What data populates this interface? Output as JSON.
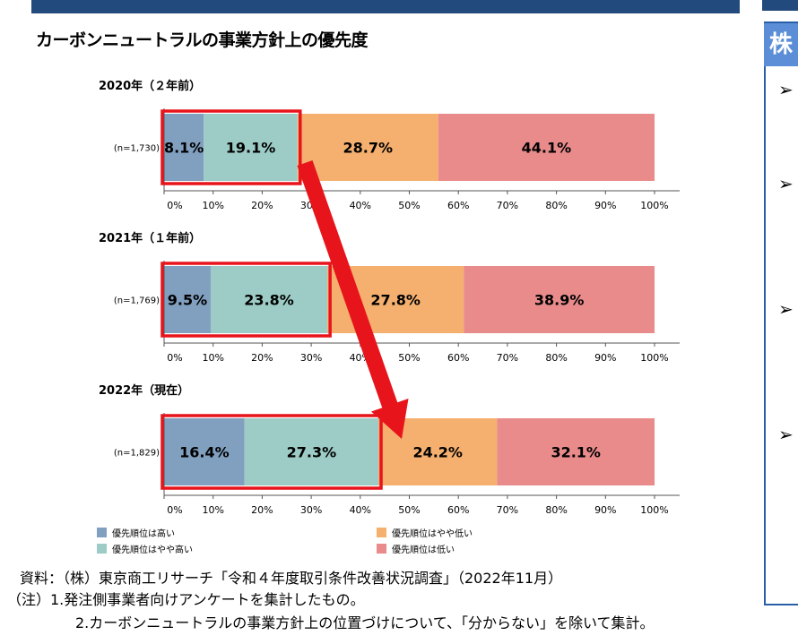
{
  "right_panel": {
    "header": "株",
    "bullets": [
      "➢",
      "➢",
      "➢",
      "➢"
    ]
  },
  "chart_data": {
    "type": "bar",
    "orientation": "horizontal-stacked-100",
    "title": "カーボンニュートラルの事業方針上の優先度",
    "xlim": [
      0,
      100
    ],
    "ticks": [
      "0%",
      "10%",
      "20%",
      "30%",
      "40%",
      "50%",
      "60%",
      "70%",
      "80%",
      "90%",
      "100%"
    ],
    "legend_position": "bottom",
    "series_names": [
      "優先順位は高い",
      "優先順位はやや高い",
      "優先順位はやや低い",
      "優先順位は低い"
    ],
    "colors": [
      "#819fbf",
      "#9dccc6",
      "#f5b06f",
      "#e98b8b"
    ],
    "groups": [
      {
        "label": "2020年（２年前）",
        "n": "(n=1,730)",
        "values": [
          8.1,
          19.1,
          28.7,
          44.1
        ],
        "labels": [
          "8.1%",
          "19.1%",
          "28.7%",
          "44.1%"
        ]
      },
      {
        "label": "2021年（１年前）",
        "n": "(n=1,769)",
        "values": [
          9.5,
          23.8,
          27.8,
          38.9
        ],
        "labels": [
          "9.5%",
          "23.8%",
          "27.8%",
          "38.9%"
        ]
      },
      {
        "label": "2022年（現在）",
        "n": "(n=1,829)",
        "values": [
          16.4,
          27.3,
          24.2,
          32.1
        ],
        "labels": [
          "16.4%",
          "27.3%",
          "24.2%",
          "32.1%"
        ]
      }
    ],
    "highlight": {
      "color": "#e8141b",
      "segments": "first two",
      "arrow": "from 2020 highlight to 2022 highlight"
    }
  },
  "footer": {
    "source": "資料：（株）東京商工リサーチ「令和４年度取引条件改善状況調査」（2022年11月）",
    "note1": "（注）1.発注側事業者向けアンケートを集計したもの。",
    "note2": "2.カーボンニュートラルの事業方針上の位置づけについて、「分からない」を除いて集計。"
  }
}
